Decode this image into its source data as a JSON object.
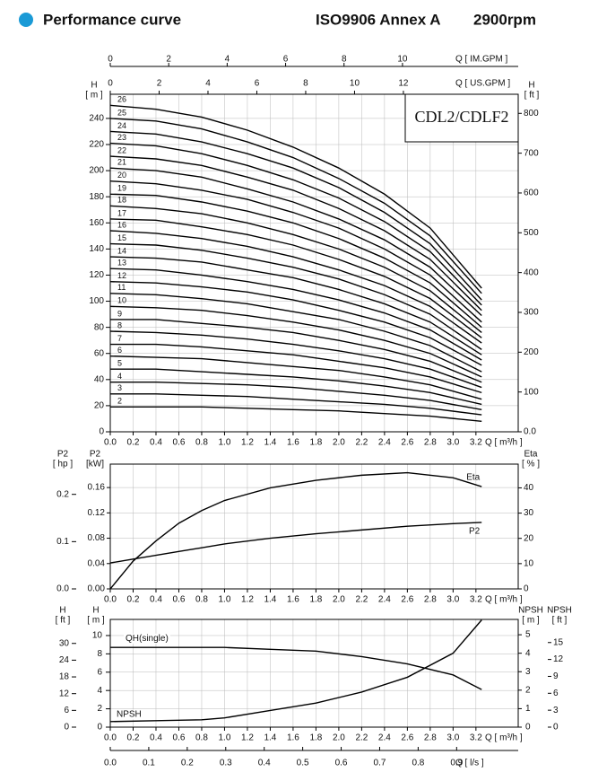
{
  "header": {
    "title": "Performance curve",
    "standard": "ISO9906 Annex A",
    "speed": "2900rpm"
  },
  "chart_data": [
    {
      "type": "line",
      "annotation": "CDL2/CDLF2",
      "color": "#000000",
      "grid": true,
      "x_label": "Q [ m³/h ]",
      "xlim": [
        0,
        3.57
      ],
      "xticks": [
        {
          "value": 0,
          "label": "0.0"
        },
        0.2,
        0.4,
        0.6,
        0.8,
        {
          "value": 1,
          "label": "1.0"
        },
        1.2,
        1.4,
        1.6,
        1.8,
        {
          "value": 2,
          "label": "2.0"
        },
        2.2,
        2.4,
        2.6,
        2.8,
        {
          "value": 3,
          "label": "3.0"
        },
        3.2
      ],
      "x2_label": "Q [ IM.GPM ]",
      "x2lim": [
        0,
        13.96
      ],
      "x2ticks": [
        0,
        2,
        4,
        6,
        8,
        10
      ],
      "x3_label": "Q [ US.GPM ]",
      "x3lim": [
        0,
        16.7
      ],
      "x3ticks": [
        0,
        2,
        4,
        6,
        8,
        10,
        12
      ],
      "y_label": "H",
      "y_unit": "[ m ]",
      "ylim": [
        0,
        258.5
      ],
      "yticks": [
        0,
        20,
        40,
        60,
        80,
        100,
        120,
        140,
        160,
        180,
        200,
        220,
        240
      ],
      "y2_label": "H",
      "y2_unit": "[ ft ]",
      "y2lim": [
        0,
        848
      ],
      "y2ticks": [
        {
          "value": 0,
          "label": "0.0"
        },
        100,
        200,
        300,
        400,
        500,
        600,
        700,
        800
      ],
      "x": [
        0,
        0.4,
        0.8,
        1.2,
        1.6,
        2.0,
        2.4,
        2.8,
        3.25
      ],
      "series": [
        {
          "name": "26",
          "values": [
            250,
            247,
            241,
            231,
            218,
            202,
            182,
            156,
            110
          ]
        },
        {
          "name": "25",
          "values": [
            240,
            238,
            232,
            222,
            210,
            194,
            175,
            150,
            106
          ]
        },
        {
          "name": "24",
          "values": [
            230,
            228,
            222,
            213,
            202,
            187,
            168,
            144,
            101
          ]
        },
        {
          "name": "23",
          "values": [
            221,
            219,
            213,
            204,
            193,
            179,
            161,
            138,
            97
          ]
        },
        {
          "name": "22",
          "values": [
            211,
            209,
            204,
            195,
            185,
            171,
            154,
            132,
            93
          ]
        },
        {
          "name": "21",
          "values": [
            202,
            200,
            195,
            186,
            176,
            163,
            147,
            126,
            89
          ]
        },
        {
          "name": "20",
          "values": [
            192,
            190,
            185,
            178,
            168,
            156,
            140,
            120,
            84
          ]
        },
        {
          "name": "19",
          "values": [
            182,
            181,
            176,
            169,
            160,
            148,
            133,
            114,
            80
          ]
        },
        {
          "name": "18",
          "values": [
            173,
            171,
            167,
            160,
            151,
            140,
            126,
            108,
            76
          ]
        },
        {
          "name": "17",
          "values": [
            163,
            162,
            157,
            151,
            143,
            132,
            119,
            102,
            72
          ]
        },
        {
          "name": "16",
          "values": [
            154,
            152,
            148,
            142,
            134,
            124,
            112,
            96,
            68
          ]
        },
        {
          "name": "15",
          "values": [
            144,
            143,
            139,
            133,
            126,
            117,
            105,
            90,
            63
          ]
        },
        {
          "name": "14",
          "values": [
            134,
            133,
            130,
            124,
            118,
            109,
            98,
            84,
            59
          ]
        },
        {
          "name": "13",
          "values": [
            125,
            124,
            120,
            115,
            109,
            101,
            91,
            78,
            55
          ]
        },
        {
          "name": "12",
          "values": [
            115,
            114,
            111,
            107,
            101,
            93,
            84,
            72,
            51
          ]
        },
        {
          "name": "11",
          "values": [
            106,
            105,
            102,
            98,
            92,
            86,
            77,
            66,
            46
          ]
        },
        {
          "name": "10",
          "values": [
            96,
            95,
            93,
            89,
            84,
            78,
            70,
            60,
            42
          ]
        },
        {
          "name": "9",
          "values": [
            86,
            86,
            83,
            80,
            76,
            70,
            63,
            54,
            38
          ]
        },
        {
          "name": "8",
          "values": [
            77,
            76,
            74,
            71,
            67,
            62,
            56,
            48,
            34
          ]
        },
        {
          "name": "7",
          "values": [
            67,
            67,
            65,
            62,
            59,
            54,
            49,
            42,
            30
          ]
        },
        {
          "name": "6",
          "values": [
            58,
            57,
            56,
            53,
            50,
            47,
            42,
            36,
            25
          ]
        },
        {
          "name": "5",
          "values": [
            48,
            48,
            46,
            44,
            42,
            39,
            35,
            30,
            21
          ]
        },
        {
          "name": "4",
          "values": [
            38,
            38,
            37,
            36,
            34,
            31,
            28,
            24,
            17
          ]
        },
        {
          "name": "3",
          "values": [
            29,
            29,
            28,
            27,
            25,
            23,
            21,
            18,
            13
          ]
        },
        {
          "name": "2",
          "values": [
            19,
            19,
            19,
            18,
            17,
            16,
            14,
            12,
            8
          ]
        }
      ]
    },
    {
      "type": "line",
      "color": "#000000",
      "grid": true,
      "x_label": "Q [ m³/h ]",
      "xlim": [
        0,
        3.57
      ],
      "xticks": [
        {
          "value": 0,
          "label": "0.0"
        },
        0.2,
        0.4,
        0.6,
        0.8,
        {
          "value": 1,
          "label": "1.0"
        },
        1.2,
        1.4,
        1.6,
        1.8,
        {
          "value": 2,
          "label": "2.0"
        },
        2.2,
        2.4,
        2.6,
        2.8,
        {
          "value": 3,
          "label": "3.0"
        },
        3.2
      ],
      "y_label": "P2",
      "y_unit": "[kW]",
      "ylim": [
        0,
        0.197
      ],
      "yticks": [
        {
          "value": 0,
          "label": "0.00"
        },
        0.04,
        0.08,
        0.12,
        0.16
      ],
      "y2_label": "Eta",
      "y2_unit": "[ % ]",
      "y2lim": [
        0,
        49.4
      ],
      "y2ticks": [
        0,
        10,
        20,
        30,
        40
      ],
      "y3_label": "P2",
      "y3_unit": "[ hp ]",
      "y3lim": [
        0,
        0.264
      ],
      "y3ticks": [
        {
          "value": 0,
          "label": "0.0"
        },
        0.1,
        0.2
      ],
      "x": [
        0,
        0.2,
        0.4,
        0.6,
        0.8,
        1.0,
        1.4,
        1.8,
        2.2,
        2.6,
        3.0,
        3.25
      ],
      "series": [
        {
          "name": "Eta",
          "axis": "y2",
          "values": [
            0,
            11,
            19,
            26,
            31,
            35,
            40,
            43,
            45,
            46,
            44,
            40.5
          ]
        },
        {
          "name": "P2",
          "values": [
            0.041,
            0.047,
            0.053,
            0.059,
            0.065,
            0.071,
            0.08,
            0.087,
            0.093,
            0.099,
            0.103,
            0.105
          ]
        }
      ]
    },
    {
      "type": "line",
      "color": "#000000",
      "grid": true,
      "x_label": "Q [ m³/h ]",
      "xlim": [
        0,
        3.57
      ],
      "xticks": [
        {
          "value": 0,
          "label": "0.0"
        },
        0.2,
        0.4,
        0.6,
        0.8,
        {
          "value": 1,
          "label": "1.0"
        },
        1.2,
        1.4,
        1.6,
        1.8,
        {
          "value": 2,
          "label": "2.0"
        },
        2.2,
        2.4,
        2.6,
        2.8,
        {
          "value": 3,
          "label": "3.0"
        },
        3.2
      ],
      "x2_label": "Q [ l/s ]",
      "x2lim": [
        0,
        1.06
      ],
      "x2ticks": [
        {
          "value": 0,
          "label": "0.0"
        },
        0.1,
        0.2,
        0.3,
        0.4,
        0.5,
        0.6,
        0.7,
        0.8,
        0.9
      ],
      "y_label": "H",
      "y_unit": "[ m ]",
      "ylim": [
        0,
        11.76
      ],
      "yticks": [
        0,
        2,
        4,
        6,
        8,
        10
      ],
      "y2_label": "NPSH",
      "y2_unit": "[ m ]",
      "y2lim": [
        0,
        5.83
      ],
      "y2ticks": [
        0,
        1,
        2,
        3,
        4,
        5
      ],
      "y3_label": "H",
      "y3_unit": "[ ft ]",
      "y3lim": [
        0,
        38.6
      ],
      "y3ticks": [
        0,
        6,
        12,
        18,
        24,
        30
      ],
      "y4_label": "NPSH",
      "y4_unit": "[ ft ]",
      "y4lim": [
        0,
        19.1
      ],
      "y4ticks": [
        0,
        3,
        6,
        9,
        12,
        15
      ],
      "x": [
        0,
        0.4,
        0.8,
        1.0,
        1.4,
        1.8,
        2.2,
        2.6,
        3.0,
        3.25
      ],
      "series": [
        {
          "name": "QH(single)",
          "values": [
            8.7,
            8.7,
            8.7,
            8.7,
            8.5,
            8.3,
            7.7,
            6.9,
            5.7,
            4.1
          ]
        },
        {
          "name": "NPSH",
          "axis": "y2",
          "values": [
            0.3,
            0.35,
            0.4,
            0.5,
            0.9,
            1.3,
            1.9,
            2.7,
            4.0,
            5.8
          ]
        }
      ]
    }
  ]
}
